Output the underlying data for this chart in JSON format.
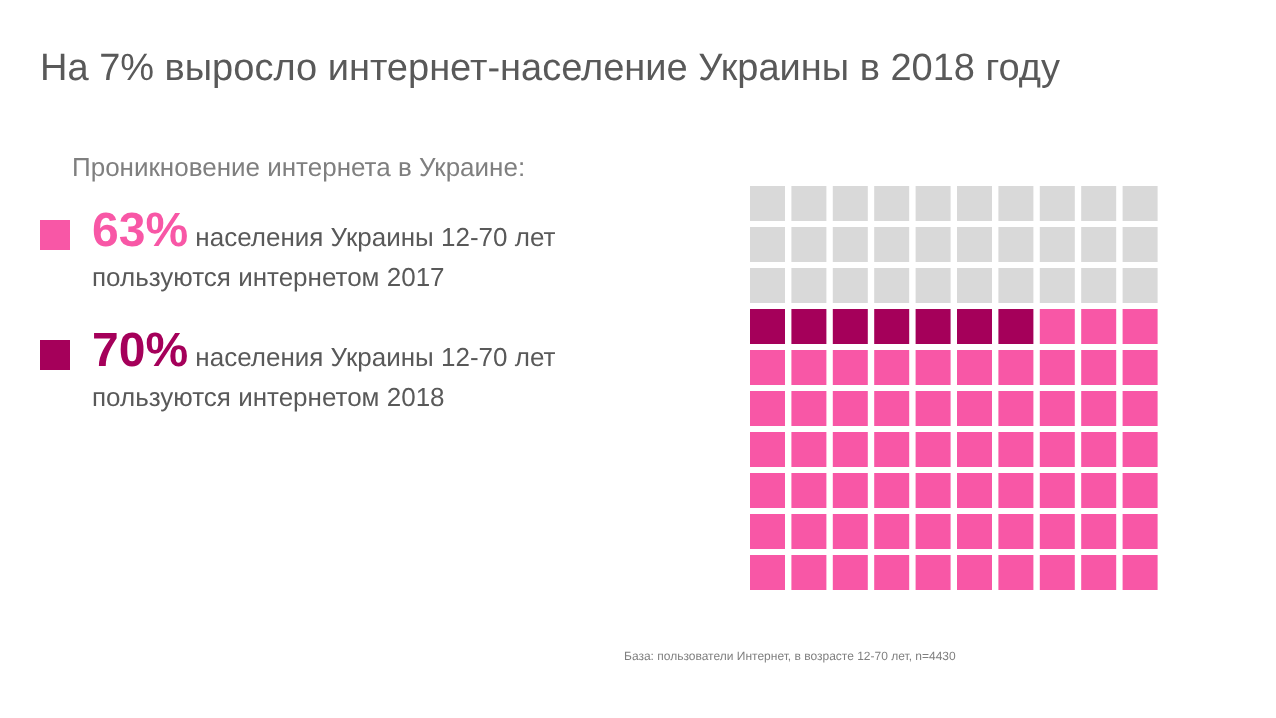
{
  "chart_data": {
    "type": "other",
    "title": "На 7% выросло интернет-население Украины в 2018 году",
    "subtitle": "Проникновение интернета в Украине:",
    "categories": [
      "населения Украины 12-70 лет пользуются интернетом 2017",
      "населения Украины 12-70 лет пользуются интернетом 2018"
    ],
    "values": [
      63,
      70
    ],
    "value_labels": [
      "63%",
      "70%"
    ],
    "colors": [
      "#f857a6",
      "#a5005a"
    ],
    "annotations": [
      "База: пользователи Интернет, в возрасте 12-70 лет, n=4430"
    ]
  }
}
